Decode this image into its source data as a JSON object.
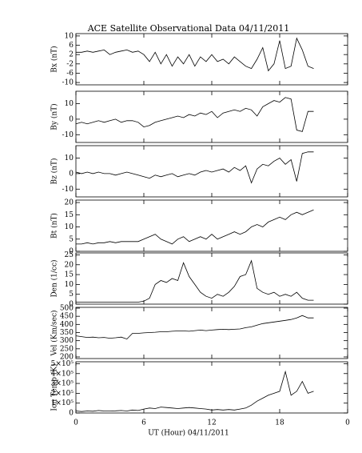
{
  "title": "ACE Satellite Observational Data   04/11/2011",
  "xaxis": {
    "label": "UT (Hour)  04/11/2011",
    "xlim": [
      0,
      24
    ],
    "xticks": [
      0,
      6,
      12,
      18,
      {
        "value": 24,
        "label": "0"
      }
    ]
  },
  "chart_data": [
    {
      "type": "line",
      "ylabel": "Bx (nT)",
      "ylim": [
        -11,
        11
      ],
      "yticks": [
        -10,
        -6,
        -2,
        2,
        6,
        10
      ],
      "x": [
        0,
        0.5,
        1,
        1.5,
        2,
        2.5,
        3,
        3.5,
        4,
        4.5,
        5,
        5.5,
        6,
        6.5,
        7,
        7.5,
        8,
        8.5,
        9,
        9.5,
        10,
        10.5,
        11,
        11.5,
        12,
        12.5,
        13,
        13.5,
        14,
        14.5,
        15,
        15.5,
        16,
        16.5,
        17,
        17.5,
        18,
        18.5,
        19,
        19.5,
        20,
        20.5,
        21
      ],
      "values": [
        3,
        3,
        3.5,
        3,
        3.5,
        4,
        2,
        3,
        3.5,
        4,
        3,
        3.5,
        2,
        -1,
        3,
        -2,
        2,
        -3,
        1,
        -2,
        2,
        -3,
        1,
        -1,
        2,
        -1,
        0,
        -2,
        1,
        -1,
        -3,
        -4,
        0,
        5,
        -5,
        -2,
        8,
        -4,
        -3,
        9,
        4,
        -3,
        -4
      ]
    },
    {
      "type": "line",
      "ylabel": "By (nT)",
      "ylim": [
        -15,
        18
      ],
      "yticks": [
        -10,
        0,
        10
      ],
      "x": [
        0,
        0.5,
        1,
        1.5,
        2,
        2.5,
        3,
        3.5,
        4,
        4.5,
        5,
        5.5,
        6,
        6.5,
        7,
        7.5,
        8,
        8.5,
        9,
        9.5,
        10,
        10.5,
        11,
        11.5,
        12,
        12.5,
        13,
        13.5,
        14,
        14.5,
        15,
        15.5,
        16,
        16.5,
        17,
        17.5,
        18,
        18.5,
        19,
        19.5,
        20,
        20.5,
        21
      ],
      "values": [
        -3,
        -2,
        -3,
        -2,
        -1,
        -2,
        -1,
        0,
        -2,
        -1,
        -1,
        -2,
        -5,
        -4,
        -2,
        -1,
        0,
        1,
        2,
        1,
        3,
        2,
        4,
        3,
        5,
        1,
        4,
        5,
        6,
        5,
        7,
        6,
        2,
        8,
        10,
        12,
        11,
        14,
        13,
        -7,
        -8,
        5,
        5
      ]
    },
    {
      "type": "line",
      "ylabel": "Bz (nT)",
      "ylim": [
        -15,
        18
      ],
      "yticks": [
        -10,
        0,
        10
      ],
      "x": [
        0,
        0.5,
        1,
        1.5,
        2,
        2.5,
        3,
        3.5,
        4,
        4.5,
        5,
        5.5,
        6,
        6.5,
        7,
        7.5,
        8,
        8.5,
        9,
        9.5,
        10,
        10.5,
        11,
        11.5,
        12,
        12.5,
        13,
        13.5,
        14,
        14.5,
        15,
        15.5,
        16,
        16.5,
        17,
        17.5,
        18,
        18.5,
        19,
        19.5,
        20,
        20.5,
        21
      ],
      "values": [
        1,
        0,
        1,
        0,
        1,
        0,
        0,
        -1,
        0,
        1,
        0,
        -1,
        -2,
        -3,
        -1,
        -2,
        -1,
        0,
        -2,
        -1,
        0,
        -1,
        1,
        2,
        1,
        2,
        3,
        1,
        4,
        2,
        5,
        -6,
        3,
        6,
        5,
        8,
        10,
        6,
        9,
        -5,
        13,
        14,
        14
      ]
    },
    {
      "type": "line",
      "ylabel": "Bt (nT)",
      "ylim": [
        0,
        21
      ],
      "yticks": [
        0,
        5,
        10,
        15,
        20
      ],
      "x": [
        0,
        0.5,
        1,
        1.5,
        2,
        2.5,
        3,
        3.5,
        4,
        4.5,
        5,
        5.5,
        6,
        6.5,
        7,
        7.5,
        8,
        8.5,
        9,
        9.5,
        10,
        10.5,
        11,
        11.5,
        12,
        12.5,
        13,
        13.5,
        14,
        14.5,
        15,
        15.5,
        16,
        16.5,
        17,
        17.5,
        18,
        18.5,
        19,
        19.5,
        20,
        20.5,
        21
      ],
      "values": [
        3,
        3,
        3.5,
        3,
        3.5,
        3.5,
        4,
        3.5,
        4,
        4,
        4,
        4,
        5,
        6,
        7,
        5,
        4,
        3,
        5,
        6,
        4,
        5,
        6,
        5,
        7,
        5,
        6,
        7,
        8,
        7,
        8,
        10,
        11,
        10,
        12,
        13,
        14,
        13,
        15,
        16,
        15,
        16,
        17
      ]
    },
    {
      "type": "line",
      "ylabel": "Den (1/cc)",
      "ylim": [
        0,
        26
      ],
      "yticks": [
        0,
        5,
        10,
        15,
        20,
        25
      ],
      "x": [
        0,
        0.5,
        1,
        1.5,
        2,
        2.5,
        3,
        3.5,
        4,
        4.5,
        5,
        5.5,
        6,
        6.5,
        7,
        7.5,
        8,
        8.5,
        9,
        9.5,
        10,
        10.5,
        11,
        11.5,
        12,
        12.5,
        13,
        13.5,
        14,
        14.5,
        15,
        15.5,
        16,
        16.5,
        17,
        17.5,
        18,
        18.5,
        19,
        19.5,
        20,
        20.5,
        21
      ],
      "values": [
        1,
        1,
        1,
        1,
        1,
        1,
        1,
        1,
        1,
        1,
        1,
        1,
        1.5,
        3,
        10,
        12,
        11,
        13,
        12,
        21,
        14,
        10,
        6,
        4,
        3,
        5,
        4,
        6,
        9,
        14,
        15,
        22,
        8,
        6,
        5,
        6,
        4,
        5,
        4,
        6,
        3,
        2,
        2
      ]
    },
    {
      "type": "line",
      "ylabel": "Vel (Km/sec)",
      "ylim": [
        190,
        505
      ],
      "yticks": [
        200,
        250,
        300,
        350,
        400,
        450,
        500
      ],
      "x": [
        0,
        0.5,
        1,
        1.5,
        2,
        2.5,
        3,
        3.5,
        4,
        4.5,
        5,
        5.5,
        6,
        6.5,
        7,
        7.5,
        8,
        8.5,
        9,
        9.5,
        10,
        10.5,
        11,
        11.5,
        12,
        12.5,
        13,
        13.5,
        14,
        14.5,
        15,
        15.5,
        16,
        16.5,
        17,
        17.5,
        18,
        18.5,
        19,
        19.5,
        20,
        20.5,
        21
      ],
      "values": [
        330,
        325,
        320,
        322,
        318,
        320,
        315,
        318,
        322,
        310,
        345,
        345,
        348,
        350,
        352,
        355,
        355,
        358,
        360,
        360,
        358,
        362,
        365,
        362,
        365,
        368,
        370,
        368,
        370,
        372,
        380,
        385,
        395,
        405,
        410,
        415,
        420,
        425,
        430,
        440,
        455,
        440,
        440
      ]
    },
    {
      "type": "line",
      "ylabel": "Ion Temp (K)",
      "ylim": [
        0,
        520000
      ],
      "yticks": [
        0,
        {
          "value": 100000,
          "label": "1×10⁵"
        },
        {
          "value": 200000,
          "label": "2×10⁵"
        },
        {
          "value": 300000,
          "label": "3×10⁵"
        },
        {
          "value": 400000,
          "label": "4×10⁵"
        },
        {
          "value": 500000,
          "label": "5×10⁵"
        }
      ],
      "x": [
        0,
        0.5,
        1,
        1.5,
        2,
        2.5,
        3,
        3.5,
        4,
        4.5,
        5,
        5.5,
        6,
        6.5,
        7,
        7.5,
        8,
        8.5,
        9,
        9.5,
        10,
        10.5,
        11,
        11.5,
        12,
        12.5,
        13,
        13.5,
        14,
        14.5,
        15,
        15.5,
        16,
        16.5,
        17,
        17.5,
        18,
        18.5,
        19,
        19.5,
        20,
        20.5,
        21
      ],
      "values": [
        20000,
        15000,
        20000,
        18000,
        25000,
        20000,
        20000,
        22000,
        25000,
        20000,
        30000,
        25000,
        40000,
        50000,
        45000,
        60000,
        55000,
        50000,
        45000,
        50000,
        55000,
        50000,
        45000,
        40000,
        30000,
        35000,
        30000,
        35000,
        30000,
        40000,
        50000,
        80000,
        120000,
        150000,
        180000,
        200000,
        220000,
        420000,
        180000,
        220000,
        320000,
        200000,
        220000
      ]
    }
  ]
}
